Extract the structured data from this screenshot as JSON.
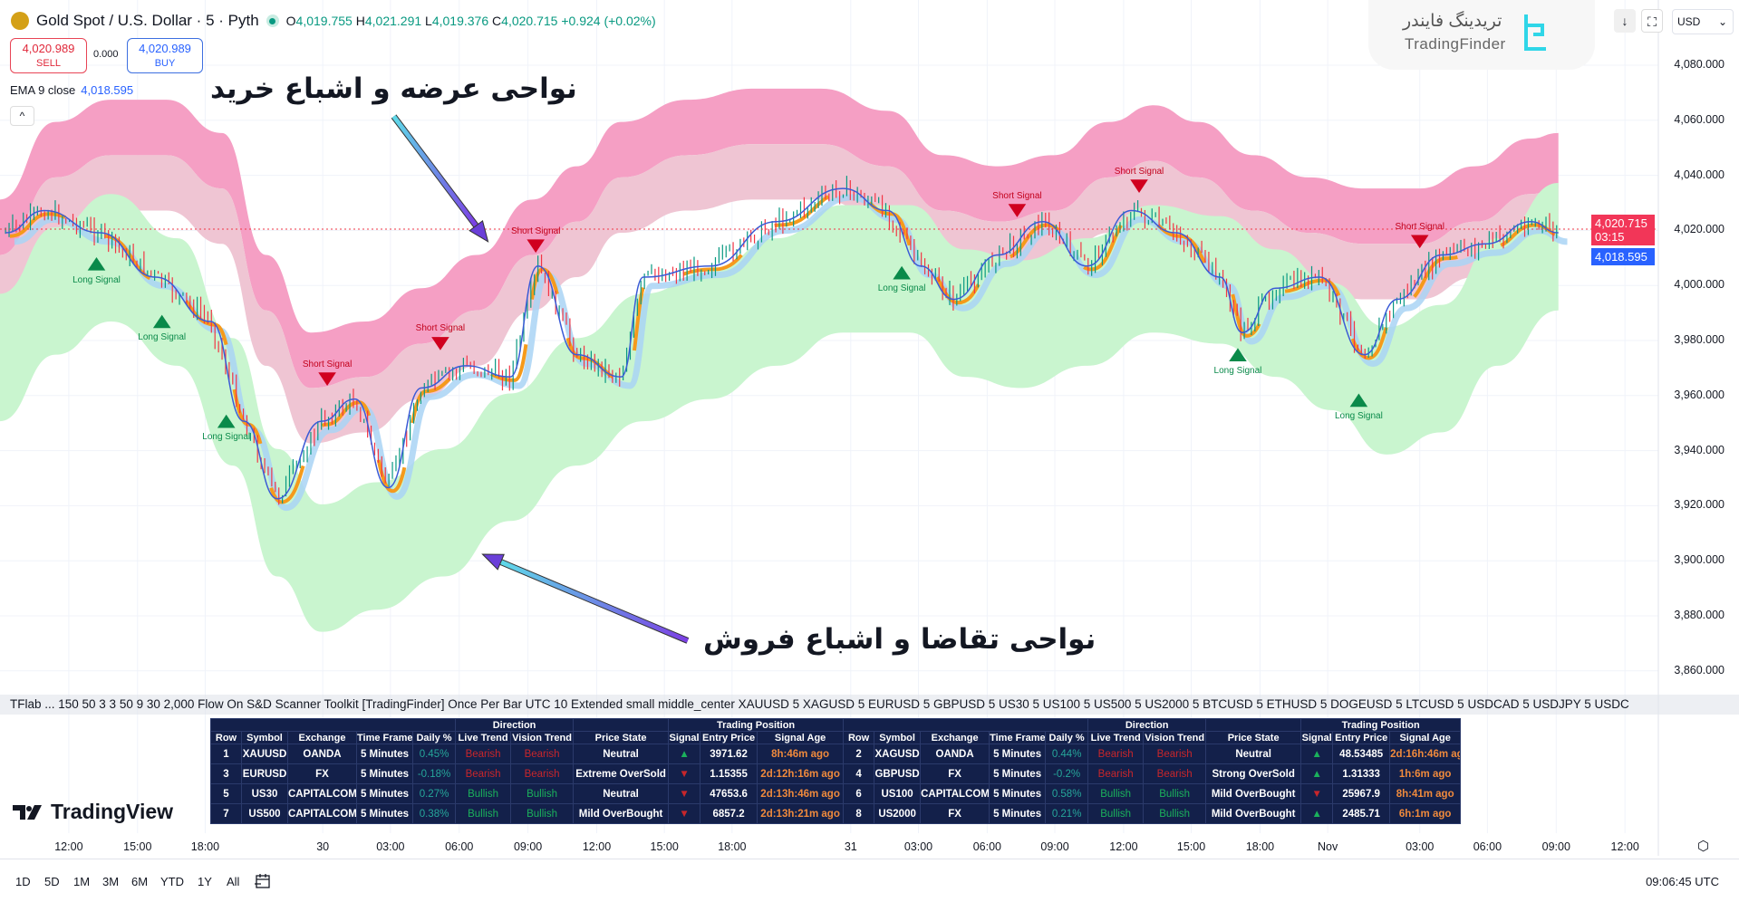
{
  "header": {
    "symbol": "Gold Spot / U.S. Dollar · 5 · Pyth",
    "o_label": "O",
    "o": "4,019.755",
    "h_label": "H",
    "h": "4,021.291",
    "l_label": "L",
    "l": "4,019.376",
    "c_label": "C",
    "c": "4,020.715",
    "change": "+0.924 (+0.02%)"
  },
  "trade": {
    "sell_price": "4,020.989",
    "sell_label": "SELL",
    "spread": "0.000",
    "buy_price": "4,020.989",
    "buy_label": "BUY"
  },
  "indicator": {
    "name": "EMA 9 close",
    "value": "4,018.595",
    "collapse": "^"
  },
  "brand": {
    "fa": "تریدینگ فایندر",
    "en": "TradingFinder"
  },
  "toolbar": {
    "currency": "USD",
    "down": "↓",
    "fullscreen": "⛶"
  },
  "yaxis": [
    "4,080.000",
    "4,060.000",
    "4,040.000",
    "4,020.000",
    "4,000.000",
    "3,980.000",
    "3,960.000",
    "3,940.000",
    "3,920.000",
    "3,900.000",
    "3,880.000",
    "3,860.000"
  ],
  "last_price": {
    "value": "4,020.715",
    "countdown": "03:15",
    "ema": "4,018.595"
  },
  "xaxis": [
    "12:00",
    "15:00",
    "18:00",
    "30",
    "03:00",
    "06:00",
    "09:00",
    "12:00",
    "15:00",
    "18:00",
    "31",
    "03:00",
    "06:00",
    "09:00",
    "12:00",
    "15:00",
    "18:00",
    "Nov",
    "03:00",
    "06:00",
    "09:00",
    "12:00"
  ],
  "annotations": {
    "supply": "نواحی عرضه و اشباع خرید",
    "demand": "نواحی تقاضا و اشباع فروش"
  },
  "signals": {
    "short": "Short Signal",
    "long": "Long Signal"
  },
  "params": "TFlab ...  150 50 3 3 50 9 30 2,000 Flow On S&D Scanner Toolkit [TradingFinder] Once Per Bar UTC 10 Extended small middle_center XAUUSD 5 XAGUSD 5 EURUSD 5 GBPUSD 5 US30 5 US100 5 US500 5 US2000 5 BTCUSD 5 ETHUSD 5 DOGEUSD 5 LTCUSD 5 USDCAD 5 USDJPY 5 USDC",
  "table": {
    "group_direction": "Direction",
    "group_position": "Trading Position",
    "columns": [
      "Row",
      "Symbol",
      "Exchange",
      "Time Frame",
      "Daily %",
      "Live Trend",
      "Vision Trend",
      "Price State",
      "Signal",
      "Entry Price",
      "Signal Age"
    ],
    "rows": [
      [
        [
          "1",
          "XAUUSD",
          "OANDA",
          "5 Minutes",
          "0.45%",
          "Bearish",
          "Bearish",
          "Neutral",
          "▲",
          "3971.62",
          "8h:46m ago"
        ],
        [
          "2",
          "XAGUSD",
          "OANDA",
          "5 Minutes",
          "0.44%",
          "Bearish",
          "Bearish",
          "Neutral",
          "▲",
          "48.53485",
          "2d:16h:46m ago"
        ]
      ],
      [
        [
          "3",
          "EURUSD",
          "FX",
          "5 Minutes",
          "-0.18%",
          "Bearish",
          "Bearish",
          "Extreme OverSold",
          "▼",
          "1.15355",
          "2d:12h:16m ago"
        ],
        [
          "4",
          "GBPUSD",
          "FX",
          "5 Minutes",
          "-0.2%",
          "Bearish",
          "Bearish",
          "Strong OverSold",
          "▲",
          "1.31333",
          "1h:6m ago"
        ]
      ],
      [
        [
          "5",
          "US30",
          "CAPITALCOM",
          "5 Minutes",
          "0.27%",
          "Bullish",
          "Bullish",
          "Neutral",
          "▼",
          "47653.6",
          "2d:13h:46m ago"
        ],
        [
          "6",
          "US100",
          "CAPITALCOM",
          "5 Minutes",
          "0.58%",
          "Bullish",
          "Bullish",
          "Mild OverBought",
          "▼",
          "25967.9",
          "8h:41m ago"
        ]
      ],
      [
        [
          "7",
          "US500",
          "CAPITALCOM",
          "5 Minutes",
          "0.38%",
          "Bullish",
          "Bullish",
          "Mild OverBought",
          "▼",
          "6857.2",
          "2d:13h:21m ago"
        ],
        [
          "8",
          "US2000",
          "FX",
          "5 Minutes",
          "0.21%",
          "Bullish",
          "Bullish",
          "Mild OverBought",
          "▲",
          "2485.71",
          "6h:1m ago"
        ]
      ]
    ]
  },
  "footer": {
    "logo": "TradingView",
    "ranges": [
      "1D",
      "5D",
      "1M",
      "3M",
      "6M",
      "YTD",
      "1Y",
      "All"
    ],
    "time": "09:06:45 UTC"
  },
  "colors": {
    "up": "#089981",
    "down": "#f23645",
    "supply": "#f59fc4",
    "demand": "#c9f5cf",
    "accent": "#2962ff"
  }
}
